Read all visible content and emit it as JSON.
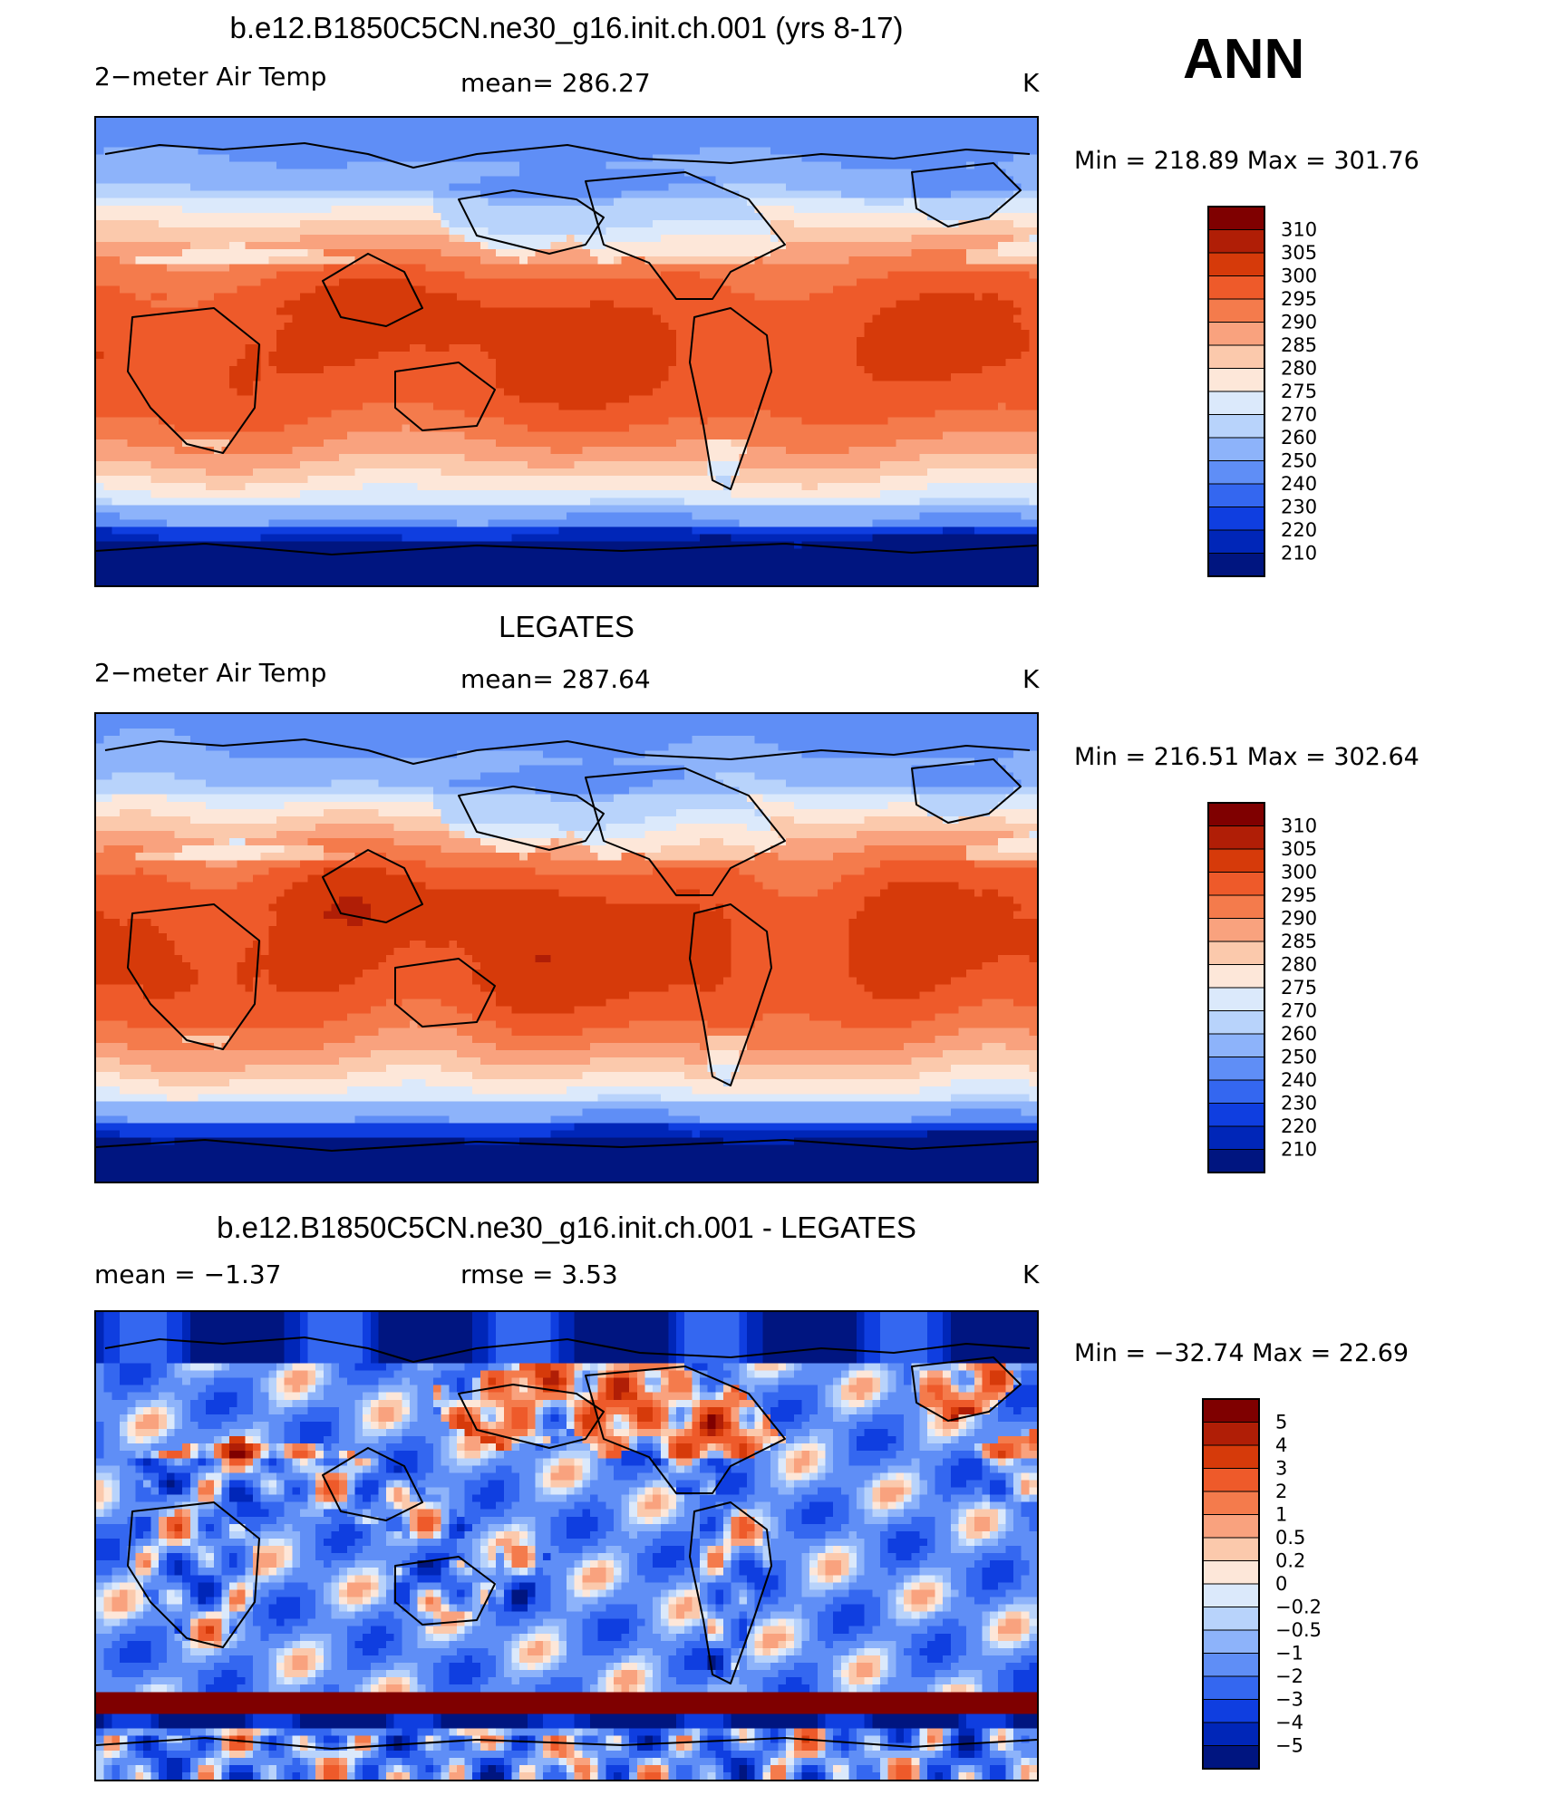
{
  "season": "ANN",
  "panels": [
    {
      "title": "b.e12.B1850C5CN.ne30_g16.init.ch.001 (yrs 8-17)",
      "left_label": "2−meter Air Temp",
      "center_label": "mean=  286.27",
      "units": "K",
      "minmax": "Min  =  218.89  Max  =  301.76",
      "field": "model",
      "colorbar_labels": [
        "310",
        "305",
        "300",
        "295",
        "290",
        "285",
        "280",
        "275",
        "270",
        "260",
        "250",
        "240",
        "230",
        "220",
        "210"
      ]
    },
    {
      "title": "LEGATES",
      "left_label": "2−meter Air Temp",
      "center_label": "mean=  287.64",
      "units": "K",
      "minmax": "Min  =  216.51  Max  =  302.64",
      "field": "obs",
      "colorbar_labels": [
        "310",
        "305",
        "300",
        "295",
        "290",
        "285",
        "280",
        "275",
        "270",
        "260",
        "250",
        "240",
        "230",
        "220",
        "210"
      ]
    },
    {
      "title": "b.e12.B1850C5CN.ne30_g16.init.ch.001 - LEGATES",
      "left_label": "mean  =    −1.37",
      "center_label": "rmse  =     3.53",
      "units": "K",
      "minmax": "Min  =  −32.74  Max  =    22.69",
      "field": "diff",
      "colorbar_labels": [
        "5",
        "4",
        "3",
        "2",
        "1",
        "0.5",
        "0.2",
        "0",
        "−0.2",
        "−0.5",
        "−1",
        "−2",
        "−3",
        "−4",
        "−5"
      ]
    }
  ],
  "chart_data": [
    {
      "type": "heatmap",
      "title": "b.e12.B1850C5CN.ne30_g16.init.ch.001 (yrs 8-17)",
      "variable": "2-meter Air Temp",
      "units": "K",
      "mean": 286.27,
      "min": 218.89,
      "max": 301.76,
      "levels": [
        310,
        305,
        300,
        295,
        290,
        285,
        280,
        275,
        270,
        260,
        250,
        240,
        230,
        220,
        210
      ]
    },
    {
      "type": "heatmap",
      "title": "LEGATES",
      "variable": "2-meter Air Temp",
      "units": "K",
      "mean": 287.64,
      "min": 216.51,
      "max": 302.64,
      "levels": [
        310,
        305,
        300,
        295,
        290,
        285,
        280,
        275,
        270,
        260,
        250,
        240,
        230,
        220,
        210
      ]
    },
    {
      "type": "heatmap",
      "title": "b.e12.B1850C5CN.ne30_g16.init.ch.001 - LEGATES",
      "units": "K",
      "mean": -1.37,
      "rmse": 3.53,
      "min": -32.74,
      "max": 22.69,
      "levels": [
        5,
        4,
        3,
        2,
        1,
        0.5,
        0.2,
        0,
        -0.2,
        -0.5,
        -1,
        -2,
        -3,
        -4,
        -5
      ]
    }
  ],
  "palette": [
    "#7f0000",
    "#b01e06",
    "#d63a0a",
    "#ee5a2a",
    "#f47b4c",
    "#f9a27e",
    "#fbc9ac",
    "#fde7d9",
    "#dbe9fb",
    "#b8d3fb",
    "#8db3fa",
    "#5f8ef6",
    "#3467f0",
    "#0f3ee0",
    "#0026b8",
    "#001580"
  ]
}
